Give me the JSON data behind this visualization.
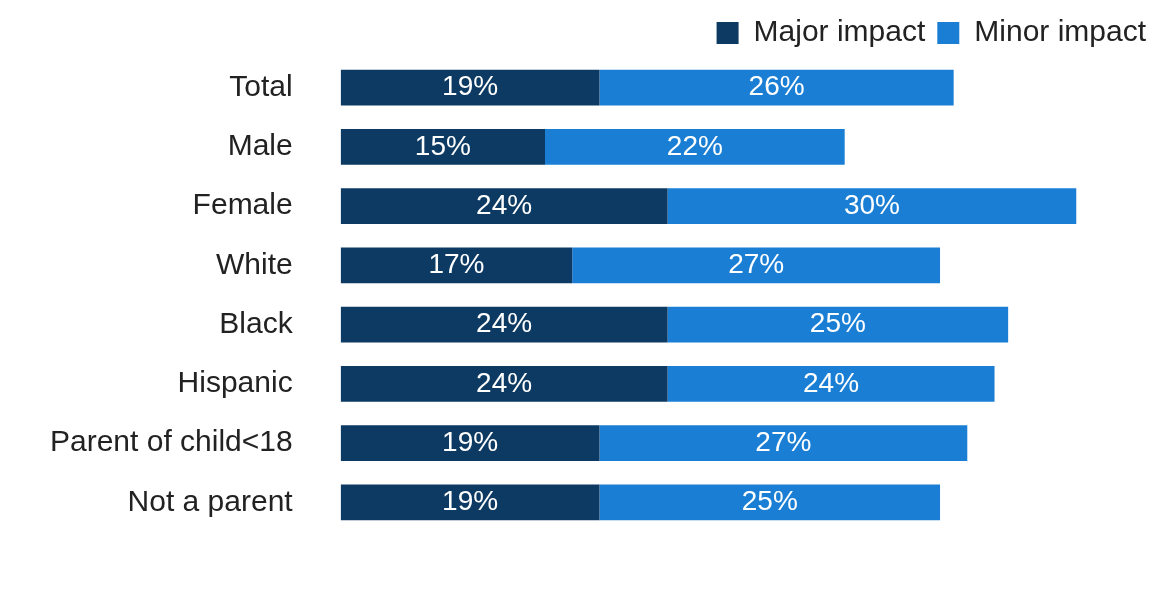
{
  "chart_data": {
    "type": "bar",
    "orientation": "horizontal",
    "stacked": true,
    "categories": [
      "Total",
      "Male",
      "Female",
      "White",
      "Black",
      "Hispanic",
      "Parent of child<18",
      "Not a parent"
    ],
    "series": [
      {
        "name": "Major impact",
        "color": "#0d3a63",
        "values": [
          19,
          15,
          24,
          17,
          24,
          24,
          19,
          19
        ],
        "value_labels": [
          "19%",
          "15%",
          "24%",
          "17%",
          "24%",
          "24%",
          "19%",
          "19%"
        ]
      },
      {
        "name": "Minor impact",
        "color": "#1a7fd4",
        "values": [
          26,
          22,
          30,
          27,
          25,
          24,
          27,
          25
        ],
        "value_labels": [
          "26%",
          "22%",
          "30%",
          "27%",
          "25%",
          "24%",
          "27%",
          "25%"
        ]
      }
    ],
    "tick_labels": "y",
    "legend": "top right"
  }
}
